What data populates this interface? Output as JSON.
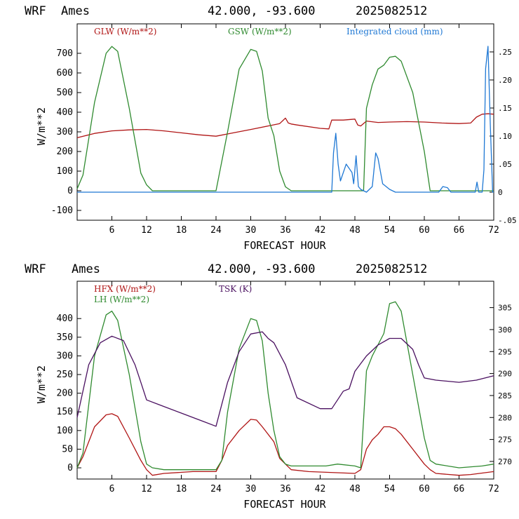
{
  "chart_data": [
    {
      "type": "line",
      "header": {
        "model": "WRF",
        "location": "Ames",
        "coords": "42.000, -93.600",
        "run": "2025082512"
      },
      "xlabel": "FORECAST HOUR",
      "ylabel": "W/m**2",
      "xlim": [
        0,
        72
      ],
      "ylim": [
        -150,
        850
      ],
      "y2lim": [
        -0.05,
        0.3
      ],
      "xticks": [
        "6",
        "12",
        "18",
        "24",
        "30",
        "36",
        "42",
        "48",
        "54",
        "60",
        "66",
        "72"
      ],
      "yticks": [
        "-100",
        "0",
        "100",
        "200",
        "300",
        "400",
        "500",
        "600",
        "700"
      ],
      "y2ticks": [
        "-.05",
        "0",
        ".05",
        ".10",
        ".15",
        ".20",
        ".25"
      ],
      "series": [
        {
          "name": "GLW (W/m**2)",
          "color": "#b01515",
          "axis": "left",
          "x": [
            0,
            3,
            6,
            9,
            12,
            15,
            18,
            21,
            24,
            27,
            30,
            33,
            35,
            36,
            36.5,
            37,
            38,
            42,
            43.5,
            44,
            46,
            48,
            48.5,
            49,
            50,
            52,
            54,
            57,
            60,
            63,
            66,
            68,
            69,
            70,
            71,
            72
          ],
          "y": [
            270,
            292,
            305,
            310,
            312,
            305,
            295,
            285,
            278,
            295,
            312,
            330,
            342,
            370,
            345,
            340,
            335,
            318,
            315,
            360,
            360,
            365,
            335,
            330,
            355,
            348,
            350,
            352,
            350,
            345,
            342,
            345,
            375,
            390,
            392,
            390
          ]
        },
        {
          "name": "GSW (W/m**2)",
          "color": "#2f8a2f",
          "axis": "left",
          "x": [
            0,
            1,
            3,
            5,
            6,
            7,
            9,
            11,
            12,
            13,
            24,
            26,
            28,
            30,
            31,
            32,
            33,
            34,
            35,
            36,
            37,
            49.5,
            50,
            51,
            52,
            53,
            54,
            55,
            56,
            58,
            60,
            61,
            72
          ],
          "y": [
            10,
            80,
            450,
            700,
            735,
            710,
            420,
            90,
            30,
            0,
            0,
            300,
            620,
            720,
            710,
            610,
            370,
            280,
            100,
            20,
            0,
            0,
            420,
            540,
            620,
            640,
            680,
            685,
            660,
            500,
            200,
            0,
            0
          ]
        },
        {
          "name": "Integrated cloud (mm)",
          "color": "#1f78d4",
          "axis": "right",
          "x": [
            0,
            44,
            44.3,
            44.7,
            45.1,
            45.5,
            46.5,
            47.5,
            47.8,
            48.2,
            48.6,
            49,
            50,
            51,
            51.6,
            52,
            52.8,
            54,
            55,
            62.5,
            63.2,
            64,
            64.6,
            68.8,
            69.1,
            69.4,
            70,
            70.3,
            70.6,
            71,
            71.4,
            71.8,
            72
          ],
          "y": [
            0,
            0,
            0.07,
            0.105,
            0.05,
            0.02,
            0.05,
            0.035,
            0.015,
            0.065,
            0.01,
            0.005,
            0,
            0.01,
            0.07,
            0.06,
            0.015,
            0.005,
            0,
            0,
            0.01,
            0.008,
            0,
            0,
            0.018,
            0,
            0,
            0.04,
            0.22,
            0.26,
            0.12,
            0,
            0
          ]
        }
      ]
    },
    {
      "type": "line",
      "header": {
        "model": "WRF",
        "location": "Ames",
        "coords": "42.000, -93.600",
        "run": "2025082512"
      },
      "xlabel": "FORECAST HOUR",
      "ylabel": "W/m**2",
      "xlim": [
        0,
        72
      ],
      "ylim": [
        -30,
        500
      ],
      "y2lim": [
        266,
        311
      ],
      "xticks": [
        "6",
        "12",
        "18",
        "24",
        "30",
        "36",
        "42",
        "48",
        "54",
        "60",
        "66",
        "72"
      ],
      "yticks": [
        "0",
        "50",
        "100",
        "150",
        "200",
        "250",
        "300",
        "350",
        "400"
      ],
      "y2ticks": [
        "270",
        "275",
        "280",
        "285",
        "290",
        "295",
        "300",
        "305"
      ],
      "series": [
        {
          "name": "HFX (W/m**2)",
          "color": "#b01515",
          "axis": "left",
          "x": [
            0,
            1,
            3,
            5,
            6,
            7,
            9,
            11,
            12,
            13,
            15,
            20,
            24,
            25,
            26,
            28,
            30,
            31,
            32,
            34,
            35,
            36,
            37,
            40,
            48,
            49,
            50,
            51,
            52,
            53,
            54,
            55,
            56,
            58,
            60,
            61,
            62,
            66,
            68,
            72
          ],
          "y": [
            0,
            30,
            110,
            142,
            145,
            138,
            80,
            20,
            -5,
            -20,
            -15,
            -10,
            -10,
            20,
            60,
            100,
            130,
            128,
            110,
            70,
            25,
            10,
            -5,
            -10,
            -15,
            -5,
            50,
            75,
            90,
            110,
            110,
            105,
            90,
            50,
            10,
            -5,
            -15,
            -20,
            -18,
            -10
          ]
        },
        {
          "name": "LH (W/m**2)",
          "color": "#2f8a2f",
          "axis": "left",
          "x": [
            0,
            1,
            3,
            5,
            6,
            7,
            9,
            11,
            12,
            13,
            15,
            20,
            24,
            25,
            26,
            28,
            30,
            31,
            32,
            33,
            34,
            35,
            36,
            37,
            43,
            45,
            48,
            49,
            50,
            51,
            52,
            53,
            54,
            55,
            56,
            58,
            60,
            61,
            62,
            66,
            70,
            72
          ],
          "y": [
            0,
            40,
            300,
            410,
            420,
            395,
            250,
            70,
            10,
            0,
            -5,
            -5,
            -5,
            20,
            150,
            320,
            400,
            395,
            340,
            200,
            100,
            30,
            10,
            5,
            5,
            10,
            5,
            0,
            260,
            300,
            330,
            360,
            440,
            445,
            420,
            250,
            80,
            20,
            10,
            0,
            5,
            10
          ]
        },
        {
          "name": "TSK (K)",
          "color": "#4a1060",
          "axis": "right",
          "x": [
            0,
            2,
            4,
            6,
            8,
            10,
            11,
            12,
            14,
            18,
            22,
            24,
            26,
            28,
            30,
            32,
            33,
            34,
            36,
            38,
            42,
            44,
            45,
            46,
            47,
            48,
            50,
            52,
            54,
            56,
            58,
            59,
            60,
            62,
            66,
            69,
            72
          ],
          "y": [
            280,
            292,
            297,
            298.5,
            297.5,
            292,
            288,
            284,
            283,
            281,
            279,
            278,
            288,
            295,
            299,
            299.5,
            298,
            297,
            292,
            284.5,
            282,
            282,
            284,
            286,
            286.5,
            290.5,
            294,
            296.5,
            298,
            298,
            295.5,
            292,
            289,
            288.5,
            288,
            288.5,
            289.5
          ]
        }
      ]
    }
  ]
}
